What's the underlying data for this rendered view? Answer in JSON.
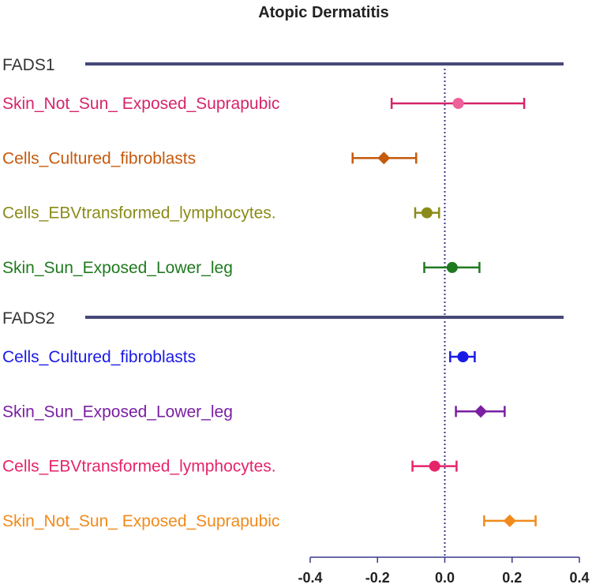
{
  "chart_data": {
    "type": "forest",
    "title": "Atopic Dermatitis",
    "xlim": [
      -0.4,
      0.4
    ],
    "ticks": [
      -0.4,
      -0.2,
      0.0,
      0.2,
      0.4
    ],
    "tick_labels": [
      "-0.4",
      "-0.2",
      "0.0",
      "0.2",
      "0.4"
    ],
    "reference_line": 0,
    "groups": [
      {
        "name": "FADS1",
        "rows": [
          {
            "label": "Skin_Not_Sun_ Exposed_Suprapubic",
            "estimate": 0.04,
            "lower": -0.158,
            "upper": 0.236,
            "color": "#d6246a",
            "marker_color": "#f0609a",
            "marker": "circle"
          },
          {
            "label": "Cells_Cultured_fibroblasts",
            "estimate": -0.181,
            "lower": -0.274,
            "upper": -0.085,
            "color": "#c65a0d",
            "marker_color": "#c65a0d",
            "marker": "diamond"
          },
          {
            "label": "Cells_EBVtransformed_lymphocytes.",
            "estimate": -0.053,
            "lower": -0.088,
            "upper": -0.017,
            "color": "#8b8b1a",
            "marker_color": "#8b8b1a",
            "marker": "circle"
          },
          {
            "label": "Skin_Sun_Exposed_Lower_leg",
            "estimate": 0.022,
            "lower": -0.061,
            "upper": 0.103,
            "color": "#1f7a1f",
            "marker_color": "#1f7a1f",
            "marker": "circle"
          }
        ]
      },
      {
        "name": "FADS2",
        "rows": [
          {
            "label": "Cells_Cultured_fibroblasts",
            "estimate": 0.054,
            "lower": 0.016,
            "upper": 0.089,
            "color": "#1a1ae6",
            "marker_color": "#1a1ae6",
            "marker": "circle"
          },
          {
            "label": "Skin_Sun_Exposed_Lower_leg",
            "estimate": 0.107,
            "lower": 0.033,
            "upper": 0.178,
            "color": "#7a1fa2",
            "marker_color": "#7a1fa2",
            "marker": "diamond"
          },
          {
            "label": "Cells_EBVtransformed_lymphocytes.",
            "estimate": -0.03,
            "lower": -0.096,
            "upper": 0.035,
            "color": "#e6246a",
            "marker_color": "#e6246a",
            "marker": "circle"
          },
          {
            "label": "Skin_Not_Sun_ Exposed_Suprapubic",
            "estimate": 0.193,
            "lower": 0.117,
            "upper": 0.27,
            "color": "#f28a1a",
            "marker_color": "#f28a1a",
            "marker": "diamond"
          }
        ]
      }
    ]
  }
}
